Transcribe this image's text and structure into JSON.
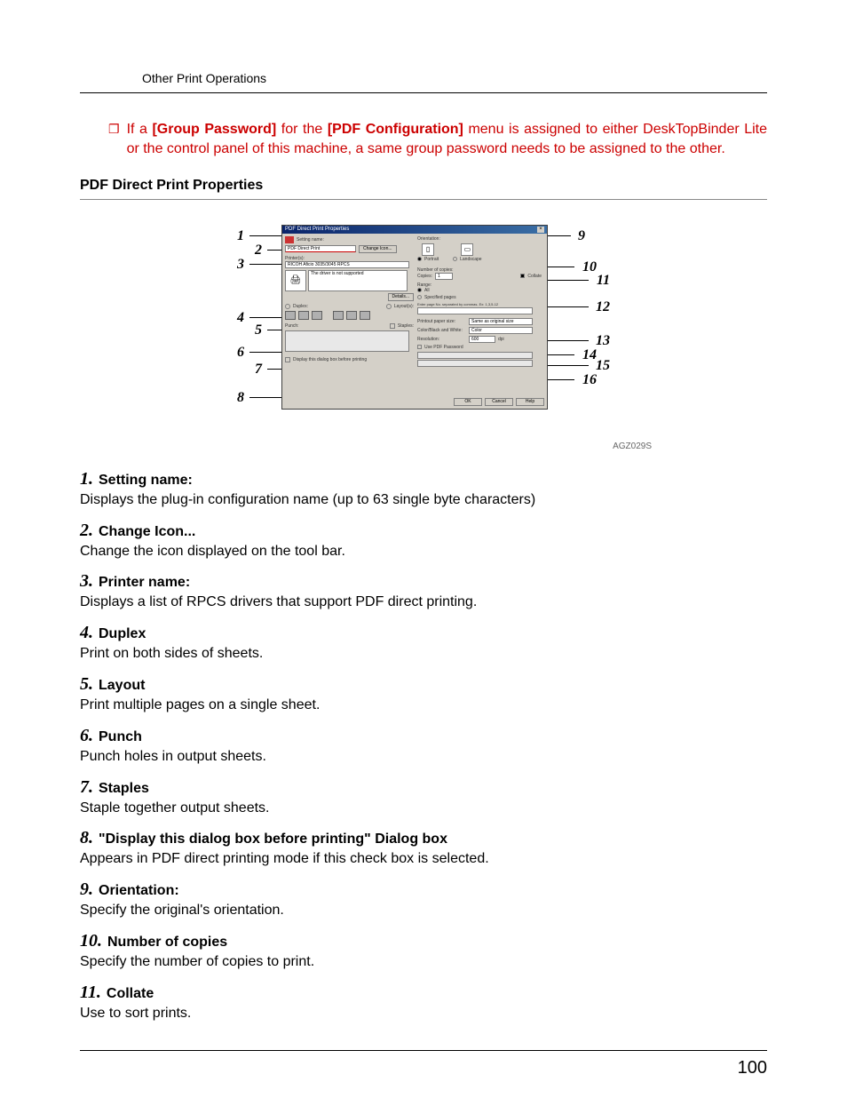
{
  "header": {
    "section": "Other Print Operations"
  },
  "note": {
    "prefix": "If a ",
    "bold1": "[Group Password]",
    "mid1": " for the ",
    "bold2": "[PDF Configuration]",
    "suffix": " menu is assigned to either DeskTopBinder Lite or the control panel of this machine, a same group password needs to be assigned to the other."
  },
  "subheading": "PDF Direct Print Properties",
  "figure": {
    "titlebar": "PDF Direct Print Properties",
    "setting_label": "Setting name:",
    "setting_value": "PDF Direct Print",
    "change_btn": "Change Icon...",
    "printer_label": "Printer(s):",
    "printer_value": "RICOH Aficio 3035/3045 RPCS",
    "preview_text": "The driver is not supported",
    "details_btn": "Details...",
    "duplex_label": "Duplex:",
    "layout_label": "Layout(s):",
    "punch_label": "Punch:",
    "staples_label": "Staples:",
    "display_dialog": "Display this dialog box before printing",
    "orientation_label": "Orientation:",
    "orient_portrait": "Portrait",
    "orient_landscape": "Landscape",
    "copies_label": "Number of copies:",
    "copies_field": "Copies:",
    "copies_value": "1",
    "collate": "Collate",
    "range_label": "Range:",
    "range_all": "All",
    "range_sel": "Specified pages",
    "range_hint": "Enter page No. separated by commas. Ex: 1,3,5-12",
    "paper_label": "Printout paper size:",
    "paper_value": "Same as original size",
    "color_label": "Color/Black and White:",
    "color_value": "Color",
    "resolution_label": "Resolution:",
    "resolution_value": "600",
    "dpi": "dpi",
    "use_pwd": "Use PDF Password",
    "ok": "OK",
    "cancel": "Cancel",
    "help": "Help",
    "code": "AGZ029S",
    "left_nums": [
      "1",
      "2",
      "3",
      "4",
      "5",
      "6",
      "7",
      "8"
    ],
    "right_nums": [
      "9",
      "10",
      "11",
      "12",
      "13",
      "14",
      "15",
      "16"
    ]
  },
  "items": [
    {
      "num": "1.",
      "title": "Setting name:",
      "desc": "Displays the plug-in configuration name (up to 63 single byte characters)"
    },
    {
      "num": "2.",
      "title": "Change Icon...",
      "desc": "Change the icon displayed on the tool bar."
    },
    {
      "num": "3.",
      "title": "Printer name:",
      "desc": "Displays a list of RPCS drivers that support PDF direct printing."
    },
    {
      "num": "4.",
      "title": "Duplex",
      "desc": "Print on both sides of sheets."
    },
    {
      "num": "5.",
      "title": "Layout",
      "desc": "Print multiple pages on a single sheet."
    },
    {
      "num": "6.",
      "title": "Punch",
      "desc": "Punch holes in output sheets."
    },
    {
      "num": "7.",
      "title": "Staples",
      "desc": "Staple together output sheets."
    },
    {
      "num": "8.",
      "title": "\"Display this dialog box before printing\" Dialog box",
      "desc": "Appears in PDF direct printing mode if this check box is selected."
    },
    {
      "num": "9.",
      "title": "Orientation:",
      "desc": "Specify the original's orientation."
    },
    {
      "num": "10.",
      "title": "Number of copies",
      "desc": "Specify the number of copies to print."
    },
    {
      "num": "11.",
      "title": "Collate",
      "desc": "Use to sort prints."
    }
  ],
  "page_number": "100"
}
